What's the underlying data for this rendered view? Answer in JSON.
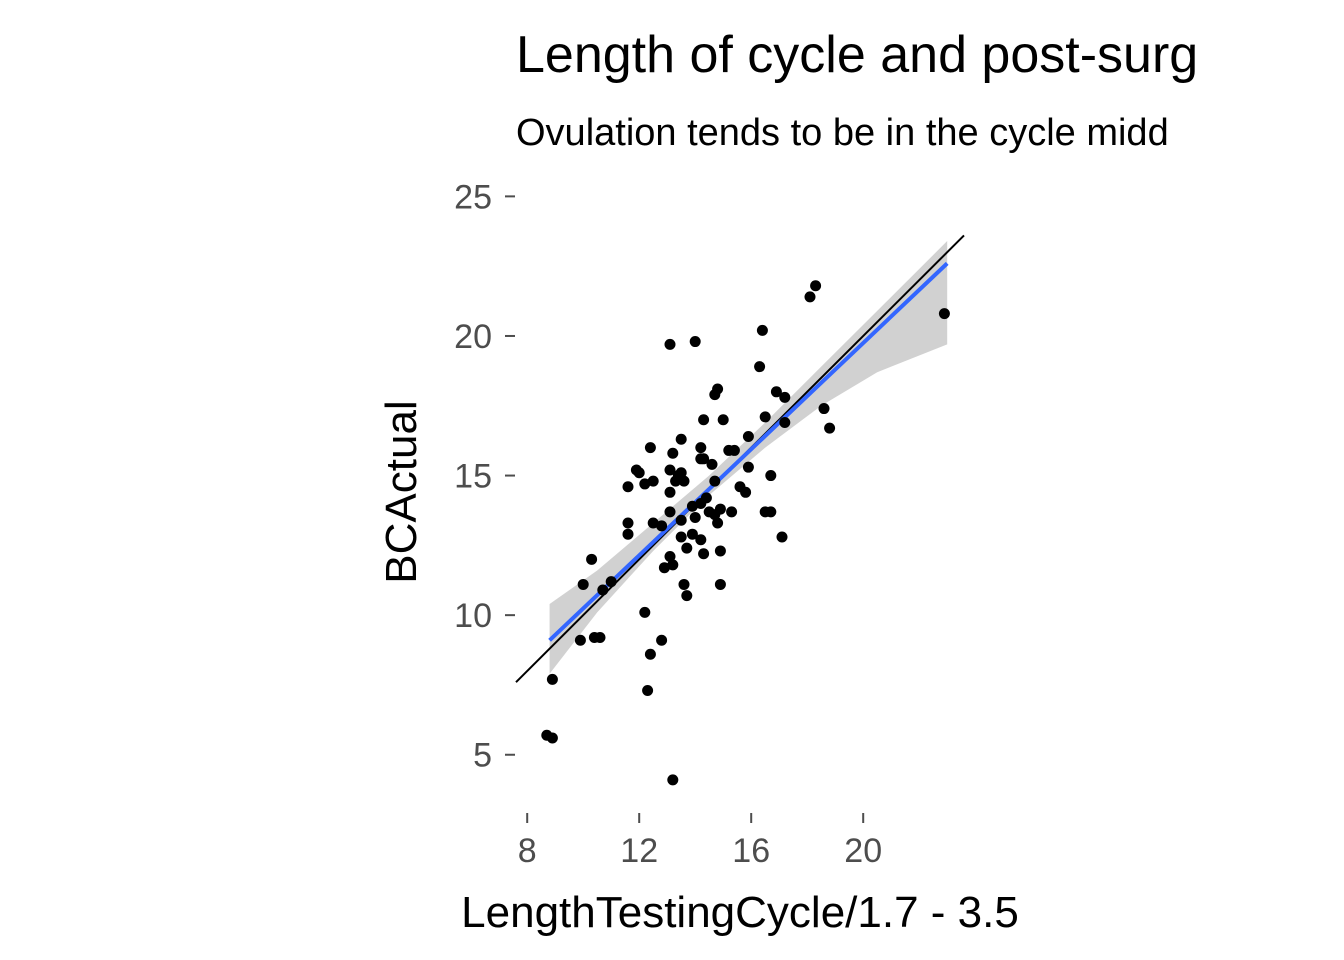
{
  "chart_data": {
    "type": "scatter",
    "title": "Length of cycle and post-surg",
    "subtitle": "Ovulation tends to be in the cycle midd",
    "xlabel": "LengthTestingCycle/1.7 - 3.5",
    "ylabel": "BCActual",
    "xlim": [
      7.6,
      23.6
    ],
    "ylim": [
      3.2,
      25.3
    ],
    "xticks": [
      8,
      12,
      16,
      20
    ],
    "yticks": [
      5,
      10,
      15,
      20,
      25
    ],
    "grid": false,
    "legend": "none",
    "colors": {
      "points": "#000000",
      "fit": "#3366ff",
      "band": "#bebebe",
      "reference": "#000000"
    },
    "points": [
      [
        8.7,
        5.7
      ],
      [
        8.9,
        5.6
      ],
      [
        8.9,
        7.7
      ],
      [
        9.9,
        9.1
      ],
      [
        10.0,
        11.1
      ],
      [
        10.3,
        12.0
      ],
      [
        10.4,
        9.2
      ],
      [
        10.6,
        9.2
      ],
      [
        10.7,
        10.9
      ],
      [
        11.0,
        11.2
      ],
      [
        11.6,
        13.3
      ],
      [
        11.6,
        12.9
      ],
      [
        11.6,
        14.6
      ],
      [
        11.9,
        15.2
      ],
      [
        12.0,
        15.1
      ],
      [
        12.2,
        14.7
      ],
      [
        12.2,
        10.1
      ],
      [
        12.3,
        7.3
      ],
      [
        12.4,
        8.6
      ],
      [
        12.4,
        16.0
      ],
      [
        12.5,
        13.3
      ],
      [
        12.5,
        14.8
      ],
      [
        12.8,
        13.2
      ],
      [
        12.8,
        9.1
      ],
      [
        12.9,
        11.7
      ],
      [
        13.1,
        19.7
      ],
      [
        13.1,
        15.2
      ],
      [
        13.1,
        14.4
      ],
      [
        13.1,
        13.7
      ],
      [
        13.1,
        12.1
      ],
      [
        13.2,
        15.8
      ],
      [
        13.2,
        11.8
      ],
      [
        13.2,
        4.1
      ],
      [
        13.3,
        14.8
      ],
      [
        13.4,
        15.0
      ],
      [
        13.5,
        16.3
      ],
      [
        13.5,
        15.1
      ],
      [
        13.5,
        12.8
      ],
      [
        13.5,
        13.4
      ],
      [
        13.6,
        14.8
      ],
      [
        13.6,
        11.1
      ],
      [
        13.7,
        12.4
      ],
      [
        13.7,
        10.7
      ],
      [
        13.9,
        13.9
      ],
      [
        13.9,
        12.9
      ],
      [
        14.0,
        19.8
      ],
      [
        14.0,
        13.5
      ],
      [
        14.2,
        16.0
      ],
      [
        14.2,
        15.6
      ],
      [
        14.2,
        14.0
      ],
      [
        14.2,
        12.7
      ],
      [
        14.3,
        17.0
      ],
      [
        14.3,
        15.6
      ],
      [
        14.3,
        12.2
      ],
      [
        14.4,
        14.2
      ],
      [
        14.5,
        13.7
      ],
      [
        14.6,
        15.4
      ],
      [
        14.7,
        17.9
      ],
      [
        14.7,
        14.8
      ],
      [
        14.7,
        13.6
      ],
      [
        14.8,
        18.1
      ],
      [
        14.8,
        13.3
      ],
      [
        14.9,
        13.8
      ],
      [
        14.9,
        12.3
      ],
      [
        14.9,
        11.1
      ],
      [
        15.0,
        17.0
      ],
      [
        15.2,
        15.9
      ],
      [
        15.3,
        13.7
      ],
      [
        15.4,
        15.9
      ],
      [
        15.6,
        14.6
      ],
      [
        15.8,
        14.4
      ],
      [
        15.9,
        16.4
      ],
      [
        15.9,
        15.3
      ],
      [
        16.3,
        18.9
      ],
      [
        16.4,
        20.2
      ],
      [
        16.5,
        17.1
      ],
      [
        16.5,
        13.7
      ],
      [
        16.7,
        15.0
      ],
      [
        16.7,
        13.7
      ],
      [
        16.9,
        18.0
      ],
      [
        17.1,
        12.8
      ],
      [
        17.2,
        17.8
      ],
      [
        17.2,
        16.9
      ],
      [
        18.1,
        21.4
      ],
      [
        18.3,
        21.8
      ],
      [
        18.6,
        17.4
      ],
      [
        18.8,
        16.7
      ],
      [
        22.9,
        20.8
      ]
    ],
    "fit_line": {
      "x": [
        8.8,
        23.0
      ],
      "y": [
        9.1,
        22.6
      ]
    },
    "confidence_band": {
      "x": [
        8.8,
        10.5,
        12.5,
        14.5,
        16.5,
        18.5,
        20.5,
        23.0
      ],
      "upper": [
        10.4,
        11.6,
        13.3,
        15.0,
        16.9,
        18.9,
        20.9,
        23.4
      ],
      "lower": [
        7.9,
        10.1,
        12.3,
        14.3,
        16.0,
        17.5,
        18.7,
        19.7
      ]
    },
    "reference_line": {
      "slope": 1,
      "intercept": 0
    }
  }
}
